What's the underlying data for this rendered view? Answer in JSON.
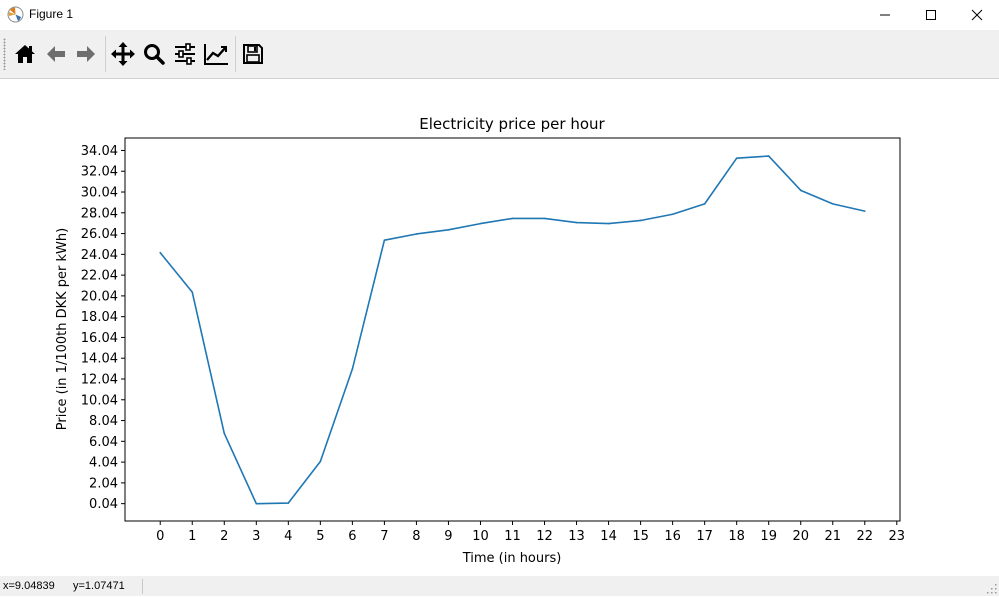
{
  "window": {
    "title": "Figure 1",
    "controls": [
      "minimize-icon",
      "maximize-icon",
      "close-icon"
    ]
  },
  "toolbar": {
    "buttons": [
      {
        "name": "home-button",
        "icon": "home-icon"
      },
      {
        "name": "back-button",
        "icon": "arrow-left-icon"
      },
      {
        "name": "forward-button",
        "icon": "arrow-right-icon"
      },
      {
        "name": "pan-button",
        "icon": "move-icon"
      },
      {
        "name": "zoom-button",
        "icon": "magnifier-icon"
      },
      {
        "name": "subplots-button",
        "icon": "sliders-icon"
      },
      {
        "name": "edit-axis-button",
        "icon": "line-chart-icon"
      },
      {
        "name": "save-button",
        "icon": "floppy-disk-icon"
      }
    ]
  },
  "chart_data": {
    "type": "line",
    "title": "Electricity price per hour",
    "xlabel": "Time (in hours)",
    "ylabel": "Price (in 1/100th DKK per kWh)",
    "x": [
      0,
      1,
      2,
      3,
      4,
      5,
      6,
      7,
      8,
      9,
      10,
      11,
      12,
      13,
      14,
      15,
      16,
      17,
      18,
      19,
      20,
      21,
      22
    ],
    "series": [
      {
        "values": [
          24.2,
          20.4,
          6.8,
          0.04,
          0.1,
          4.1,
          13.0,
          25.4,
          26.0,
          26.4,
          27.0,
          27.5,
          27.5,
          27.1,
          27.0,
          27.3,
          27.9,
          28.9,
          33.3,
          33.5,
          30.2,
          28.9,
          28.2
        ],
        "color": "#1f77b4"
      }
    ],
    "xticks": [
      "0",
      "1",
      "2",
      "3",
      "4",
      "5",
      "6",
      "7",
      "8",
      "9",
      "10",
      "11",
      "12",
      "13",
      "14",
      "15",
      "16",
      "17",
      "18",
      "19",
      "20",
      "21",
      "22",
      "23"
    ],
    "yticks": [
      "0.04",
      "2.04",
      "4.04",
      "6.04",
      "8.04",
      "10.04",
      "12.04",
      "14.04",
      "16.04",
      "18.04",
      "20.04",
      "22.04",
      "24.04",
      "26.04",
      "28.04",
      "30.04",
      "32.04",
      "34.04"
    ],
    "xlim": [
      -1.1,
      23.1
    ],
    "ylim": [
      -1.63,
      35.24
    ],
    "grid": false
  },
  "status": {
    "x_readout": "x=9.04839",
    "y_readout": "y=1.07471"
  }
}
